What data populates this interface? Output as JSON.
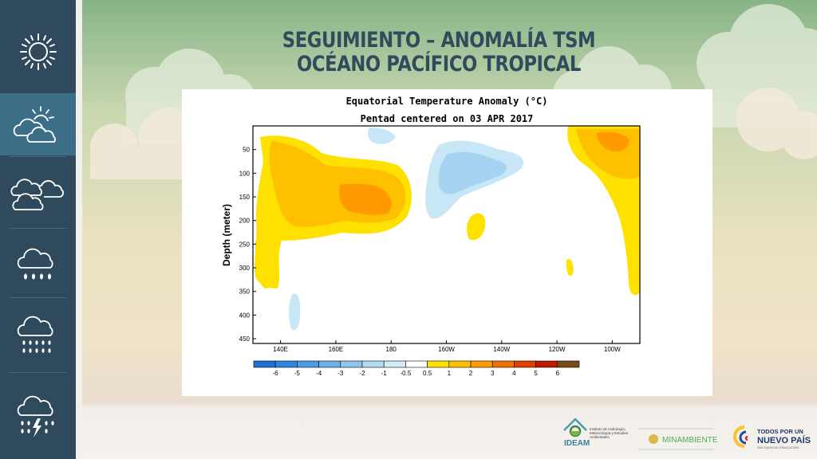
{
  "slide": {
    "title_line1": "SEGUIMIENTO – ANOMALÍA TSM",
    "title_line2": "OCÉANO PACÍFICO TROPICAL"
  },
  "sidebar": {
    "items": [
      {
        "icon": "sun-icon"
      },
      {
        "icon": "partly-cloudy-icon",
        "active": true
      },
      {
        "icon": "cloudy-icon"
      },
      {
        "icon": "rain-icon"
      },
      {
        "icon": "heavy-rain-icon"
      },
      {
        "icon": "thunderstorm-icon"
      }
    ]
  },
  "chart_data": {
    "type": "heatmap",
    "title": "Equatorial Temperature Anomaly (°C)",
    "subtitle": "Pentad centered on 03 APR 2017",
    "ylabel": "Depth (meter)",
    "xlabel": "",
    "x_ticks": [
      "140E",
      "160E",
      "180",
      "160W",
      "140W",
      "120W",
      "100W"
    ],
    "y_ticks": [
      "50",
      "100",
      "150",
      "200",
      "250",
      "300",
      "350",
      "400",
      "450"
    ],
    "ylim": [
      460,
      0
    ],
    "colorbar": {
      "labels": [
        "-6",
        "-5",
        "-4",
        "-3",
        "-2",
        "-1",
        "-0.5",
        "0.5",
        "1",
        "2",
        "3",
        "4",
        "5",
        "6"
      ],
      "colors": [
        "#1f6fd6",
        "#2f86e0",
        "#4c9be6",
        "#6db0ea",
        "#8fc7ee",
        "#b3dcf2",
        "#d2ecf7",
        "#ffffff",
        "#ffe100",
        "#ffc000",
        "#ff9a00",
        "#f07000",
        "#e04000",
        "#c01a00",
        "#7a4b1a"
      ]
    },
    "features": [
      {
        "label": "warm anomaly 1 to 3 °C",
        "x_range": [
          "138E",
          "173W"
        ],
        "depth_range": [
          20,
          250
        ]
      },
      {
        "label": "cold anomaly -0.5 to -2 °C",
        "x_range": [
          "168W",
          "146W"
        ],
        "depth_range": [
          30,
          210
        ]
      },
      {
        "label": "warm anomaly 1 to 3 °C",
        "x_range": [
          "112W",
          "95W"
        ],
        "depth_range": [
          0,
          150
        ]
      }
    ]
  },
  "footer": {
    "ideam": {
      "name": "IDEAM",
      "tagline": "Instituto de Hidrología, Meteorología y Estudios Ambientales"
    },
    "minambiente": {
      "name": "MINAMBIENTE"
    },
    "gobierno": {
      "line1": "TODOS POR UN",
      "line2": "NUEVO PAÍS",
      "line3": "PAZ  EQUIDAD  EDUCACIÓN"
    }
  }
}
